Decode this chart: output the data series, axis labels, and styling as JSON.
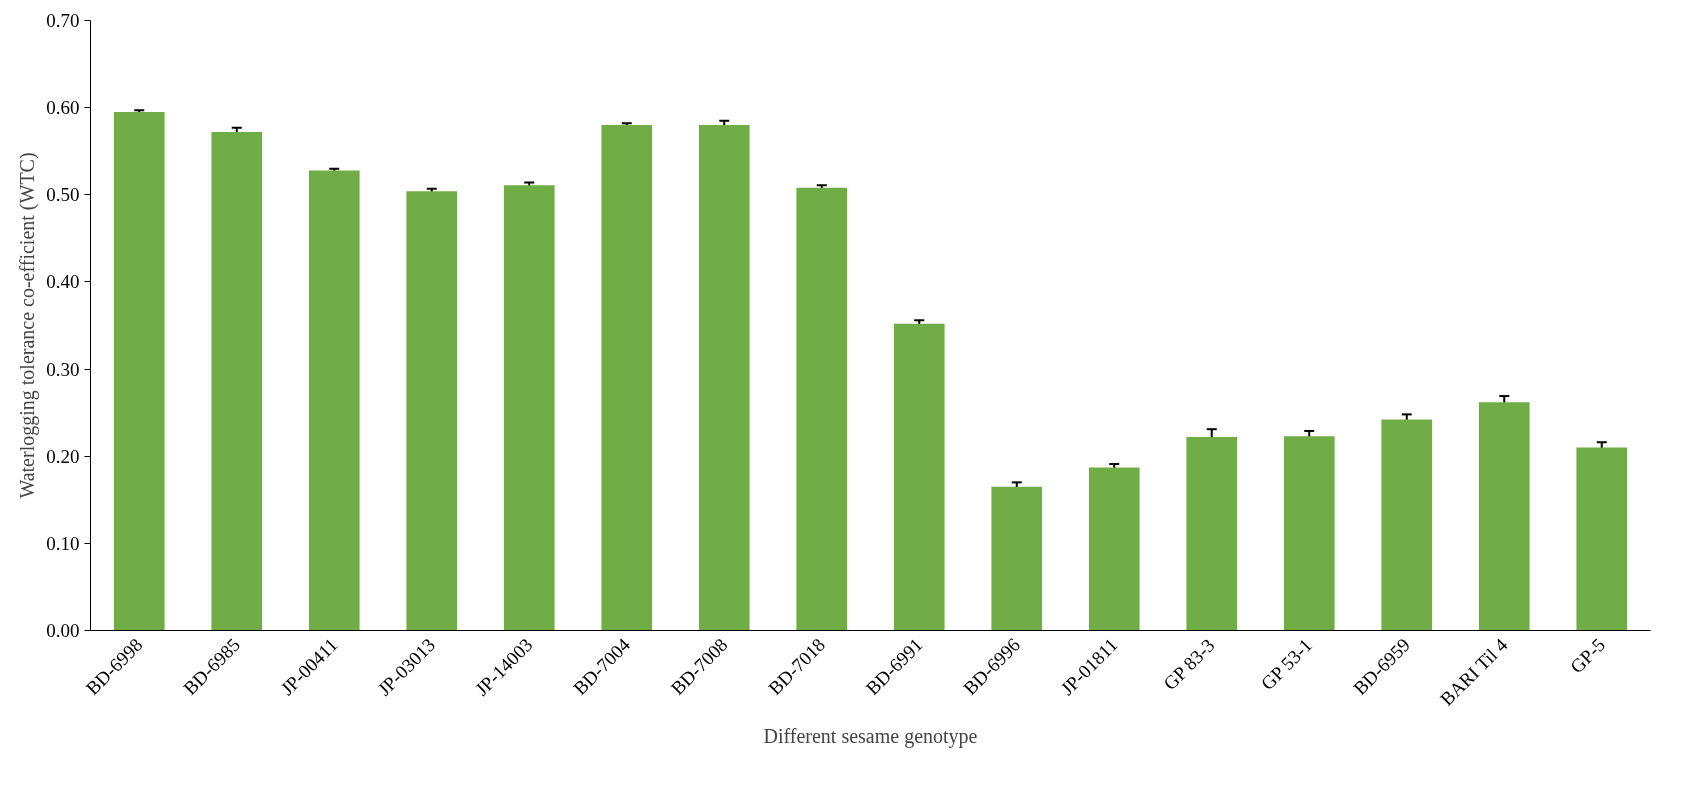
{
  "chart_data": {
    "type": "bar",
    "xlabel": "Different sesame genotype",
    "ylabel": "Waterlogging tolerance co-efficient (WTC)",
    "categories": [
      "BD-6998",
      "BD-6985",
      "JP-00411",
      "JP-03013",
      "JP-14003",
      "BD-7004",
      "BD-7008",
      "BD-7018",
      "BD-6991",
      "BD-6996",
      "JP-01811",
      "GP 83-3",
      "GP 53-1",
      "BD-6959",
      "BARI Til 4",
      "GP-5"
    ],
    "values": [
      0.595,
      0.572,
      0.528,
      0.504,
      0.511,
      0.58,
      0.58,
      0.508,
      0.352,
      0.165,
      0.187,
      0.222,
      0.223,
      0.242,
      0.262,
      0.21
    ],
    "errors": [
      0.002,
      0.005,
      0.002,
      0.003,
      0.003,
      0.002,
      0.005,
      0.003,
      0.004,
      0.005,
      0.004,
      0.009,
      0.006,
      0.006,
      0.007,
      0.006
    ],
    "color": "#70ad47",
    "ylim": [
      0,
      0.7
    ],
    "yticks": [
      {
        "value": 0,
        "label": "0.00"
      },
      {
        "value": 0.1,
        "label": "0.10"
      },
      {
        "value": 0.2,
        "label": "0.20"
      },
      {
        "value": 0.3,
        "label": "0.30"
      },
      {
        "value": 0.4,
        "label": "0.40"
      },
      {
        "value": 0.5,
        "label": "0.50"
      },
      {
        "value": 0.6,
        "label": "0.60"
      },
      {
        "value": 0.7,
        "label": "0.70"
      }
    ],
    "grid": false,
    "legend": false
  }
}
